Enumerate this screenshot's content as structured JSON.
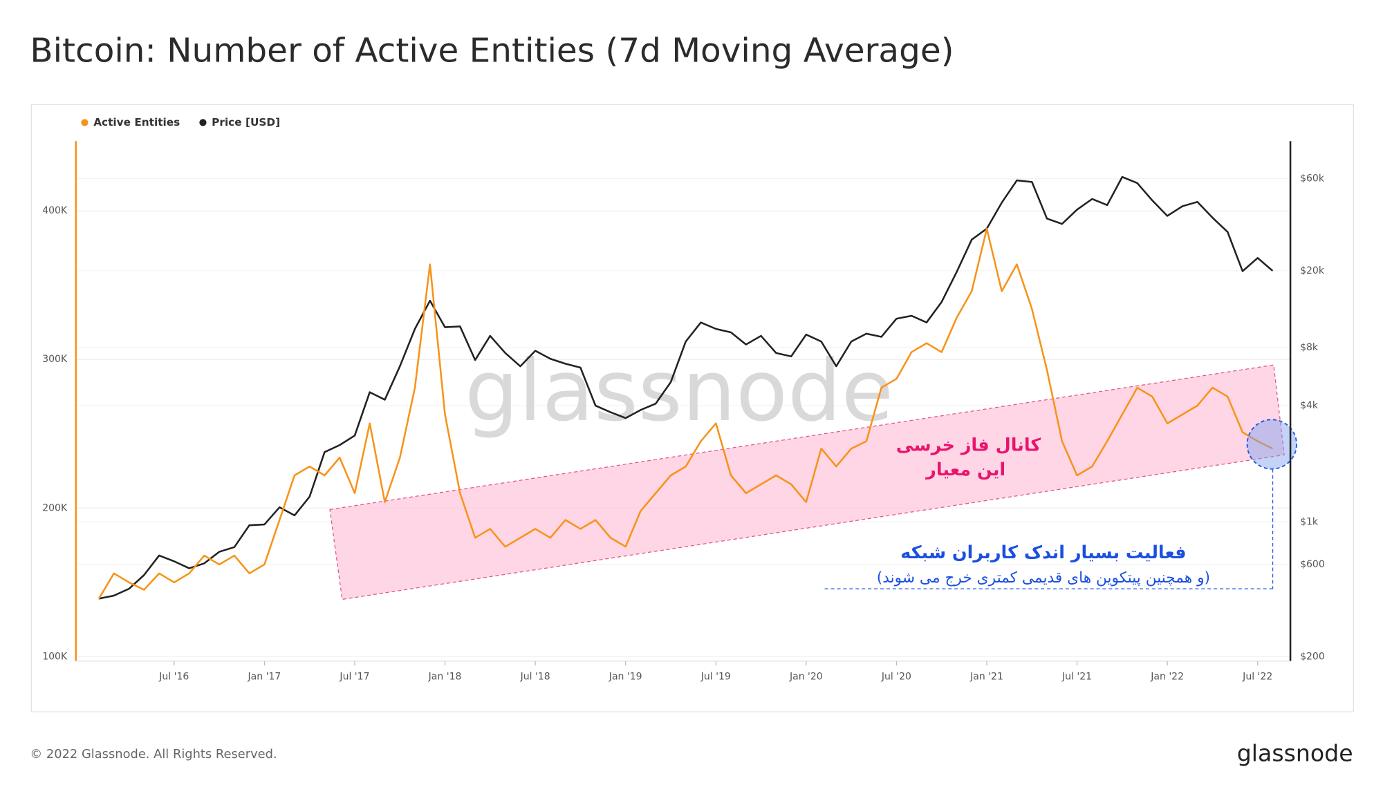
{
  "chart_data": {
    "type": "line",
    "title": "Bitcoin: Number of Active Entities (7d Moving Average)",
    "footer": "© 2022 Glassnode. All Rights Reserved.",
    "logo": "glassnode",
    "watermark": "glassnode",
    "annotations": [
      "کانال فاز خرسی",
      "این معیار",
      "فعالیت بسیار اندک کاربران شبکه",
      "(و همچنین پیتکوین های قدیمی کمتری خرج می شوند)"
    ],
    "x": [
      "2016-02",
      "2016-03",
      "2016-04",
      "2016-05",
      "2016-06",
      "2016-07",
      "2016-08",
      "2016-09",
      "2016-10",
      "2016-11",
      "2016-12",
      "2017-01",
      "2017-02",
      "2017-03",
      "2017-04",
      "2017-05",
      "2017-06",
      "2017-07",
      "2017-08",
      "2017-09",
      "2017-10",
      "2017-11",
      "2017-12",
      "2018-01",
      "2018-02",
      "2018-03",
      "2018-04",
      "2018-05",
      "2018-06",
      "2018-07",
      "2018-08",
      "2018-09",
      "2018-10",
      "2018-11",
      "2018-12",
      "2019-01",
      "2019-02",
      "2019-03",
      "2019-04",
      "2019-05",
      "2019-06",
      "2019-07",
      "2019-08",
      "2019-09",
      "2019-10",
      "2019-11",
      "2019-12",
      "2020-01",
      "2020-02",
      "2020-03",
      "2020-04",
      "2020-05",
      "2020-06",
      "2020-07",
      "2020-08",
      "2020-09",
      "2020-10",
      "2020-11",
      "2020-12",
      "2021-01",
      "2021-02",
      "2021-03",
      "2021-04",
      "2021-05",
      "2021-06",
      "2021-07",
      "2021-08",
      "2021-09",
      "2021-10",
      "2021-11",
      "2021-12",
      "2022-01",
      "2022-02",
      "2022-03",
      "2022-04",
      "2022-05",
      "2022-06",
      "2022-07",
      "2022-08"
    ],
    "series": [
      {
        "name": "Active Entities",
        "color": "#f7931a",
        "axis": "y",
        "values": [
          139000,
          156000,
          150000,
          145000,
          156000,
          150000,
          156000,
          168000,
          162000,
          168000,
          156000,
          162000,
          192000,
          222000,
          228000,
          222000,
          234000,
          210000,
          257000,
          204000,
          234000,
          281000,
          364000,
          263000,
          210000,
          180000,
          186000,
          174000,
          180000,
          186000,
          180000,
          192000,
          186000,
          192000,
          180000,
          174000,
          198000,
          210000,
          222000,
          228000,
          245000,
          257000,
          222000,
          210000,
          216000,
          222000,
          216000,
          204000,
          240000,
          228000,
          240000,
          245000,
          281000,
          287000,
          305000,
          311000,
          305000,
          328000,
          346000,
          388000,
          346000,
          364000,
          334000,
          293000,
          245000,
          222000,
          228000,
          245000,
          263000,
          281000,
          275000,
          257000,
          263000,
          269000,
          281000,
          275000,
          251000,
          245000,
          240000
        ]
      },
      {
        "name": "Price [USD]",
        "color": "#222222",
        "axis": "y2",
        "values": [
          400,
          415,
          450,
          530,
          670,
          625,
          575,
          610,
          700,
          740,
          960,
          970,
          1190,
          1080,
          1350,
          2300,
          2500,
          2800,
          4700,
          4300,
          6400,
          10000,
          14000,
          10200,
          10300,
          6900,
          9200,
          7500,
          6400,
          7700,
          7000,
          6600,
          6300,
          4000,
          3700,
          3450,
          3800,
          4100,
          5300,
          8600,
          10800,
          10000,
          9600,
          8300,
          9200,
          7500,
          7200,
          9350,
          8600,
          6400,
          8600,
          9450,
          9100,
          11300,
          11700,
          10800,
          13800,
          19700,
          29000,
          33100,
          45100,
          58800,
          57700,
          37300,
          35000,
          41500,
          47100,
          43800,
          61300,
          57000,
          46300,
          38500,
          43200,
          45500,
          37700,
          31800,
          19900,
          23300,
          20000
        ]
      }
    ],
    "xlim": [
      "2015-12",
      "2022-09"
    ],
    "xticks": [
      {
        "value": "2016-07",
        "label": "Jul '16"
      },
      {
        "value": "2017-01",
        "label": "Jan '17"
      },
      {
        "value": "2017-07",
        "label": "Jul '17"
      },
      {
        "value": "2018-01",
        "label": "Jan '18"
      },
      {
        "value": "2018-07",
        "label": "Jul '18"
      },
      {
        "value": "2019-01",
        "label": "Jan '19"
      },
      {
        "value": "2019-07",
        "label": "Jul '19"
      },
      {
        "value": "2020-01",
        "label": "Jan '20"
      },
      {
        "value": "2020-07",
        "label": "Jul '20"
      },
      {
        "value": "2021-01",
        "label": "Jan '21"
      },
      {
        "value": "2021-07",
        "label": "Jul '21"
      },
      {
        "value": "2022-01",
        "label": "Jan '22"
      },
      {
        "value": "2022-07",
        "label": "Jul '22"
      }
    ],
    "ylim": [
      97000,
      447000
    ],
    "yticks": [
      {
        "value": 100000,
        "label": "100K"
      },
      {
        "value": 200000,
        "label": "200K"
      },
      {
        "value": 300000,
        "label": "300K"
      },
      {
        "value": 400000,
        "label": "400K"
      }
    ],
    "y2lim": [
      190,
      94000
    ],
    "y2scale": "log",
    "y2ticks": [
      {
        "value": 200,
        "label": "$200"
      },
      {
        "value": 600,
        "label": "$600"
      },
      {
        "value": 1000,
        "label": "$1k"
      },
      {
        "value": 4000,
        "label": "$4k"
      },
      {
        "value": 8000,
        "label": "$8k"
      },
      {
        "value": 20000,
        "label": "$20k"
      },
      {
        "value": 60000,
        "label": "$60k"
      }
    ],
    "grid": true,
    "legend": "top-left"
  }
}
